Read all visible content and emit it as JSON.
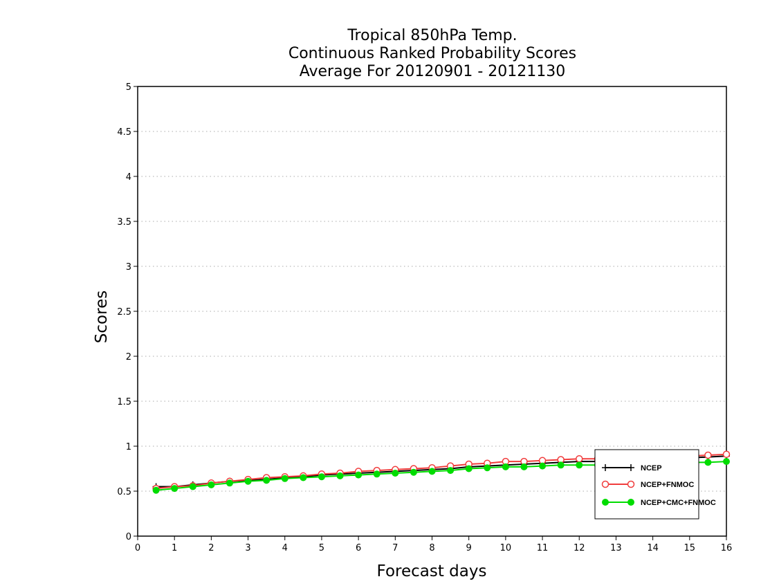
{
  "chart_data": {
    "type": "line",
    "title": [
      "Tropical 850hPa Temp.",
      "Continuous Ranked Probability Scores",
      "Average For 20120901 - 20121130"
    ],
    "xlabel": "Forecast days",
    "ylabel": "Scores",
    "xlim": [
      0,
      16
    ],
    "ylim": [
      0,
      5
    ],
    "xticks": [
      "0",
      "1",
      "2",
      "3",
      "4",
      "5",
      "6",
      "7",
      "8",
      "9",
      "10",
      "11",
      "12",
      "13",
      "14",
      "15",
      "16"
    ],
    "yticks": [
      "0",
      "0.5",
      "1",
      "1.5",
      "2",
      "2.5",
      "3",
      "3.5",
      "4",
      "4.5",
      "5"
    ],
    "grid": "horizontal dotted",
    "legend_position": "bottom-right",
    "x": [
      0.5,
      1,
      1.5,
      2,
      2.5,
      3,
      3.5,
      4,
      4.5,
      5,
      5.5,
      6,
      6.5,
      7,
      7.5,
      8,
      8.5,
      9,
      9.5,
      10,
      10.5,
      11,
      11.5,
      12,
      12.5,
      13,
      13.5,
      14,
      14.5,
      15,
      15.5,
      16
    ],
    "series": [
      {
        "name": "NCEP",
        "color": "#000000",
        "marker": "plus",
        "values": [
          0.55,
          0.55,
          0.57,
          0.59,
          0.61,
          0.62,
          0.63,
          0.65,
          0.66,
          0.68,
          0.69,
          0.7,
          0.71,
          0.72,
          0.73,
          0.74,
          0.75,
          0.77,
          0.78,
          0.79,
          0.8,
          0.81,
          0.82,
          0.83,
          0.83,
          0.84,
          0.85,
          0.86,
          0.87,
          0.87,
          0.88,
          0.89
        ]
      },
      {
        "name": "NCEP+FNMOC",
        "color": "#f03c3c",
        "marker": "open-circle",
        "values": [
          0.53,
          0.55,
          0.56,
          0.59,
          0.61,
          0.63,
          0.65,
          0.66,
          0.67,
          0.69,
          0.7,
          0.72,
          0.73,
          0.74,
          0.75,
          0.76,
          0.78,
          0.8,
          0.81,
          0.83,
          0.83,
          0.84,
          0.85,
          0.86,
          0.86,
          0.87,
          0.87,
          0.88,
          0.88,
          0.89,
          0.9,
          0.91
        ]
      },
      {
        "name": "NCEP+CMC+FNMOC",
        "color": "#00dc00",
        "marker": "filled-circle",
        "values": [
          0.51,
          0.53,
          0.55,
          0.57,
          0.59,
          0.61,
          0.62,
          0.64,
          0.65,
          0.66,
          0.67,
          0.68,
          0.69,
          0.7,
          0.71,
          0.72,
          0.73,
          0.75,
          0.76,
          0.77,
          0.77,
          0.78,
          0.79,
          0.79,
          0.79,
          0.8,
          0.8,
          0.81,
          0.81,
          0.82,
          0.82,
          0.83
        ]
      }
    ]
  }
}
